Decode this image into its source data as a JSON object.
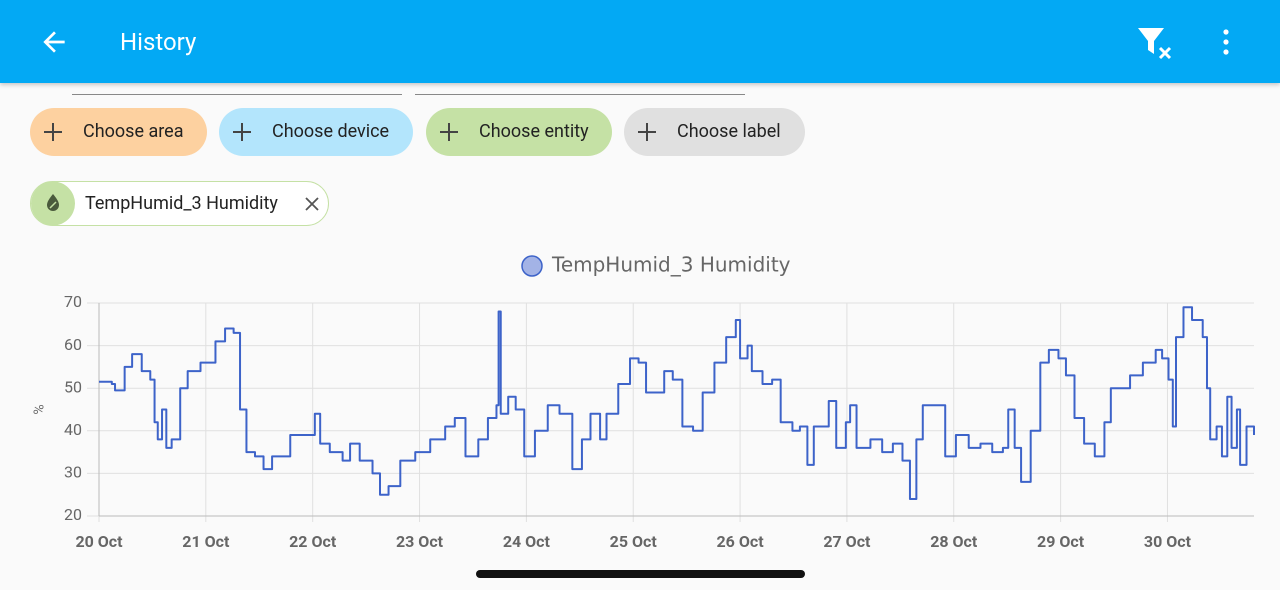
{
  "header": {
    "title": "History"
  },
  "filters": {
    "chips": [
      "Choose area",
      "Choose device",
      "Choose entity",
      "Choose label"
    ]
  },
  "selected": {
    "entity": "TempHumid_3 Humidity"
  },
  "chart_data": {
    "type": "line",
    "ylabel": "%",
    "grid": true,
    "xlim": [
      0,
      10.81
    ],
    "xticks": [
      {
        "value": 0,
        "label": "20 Oct"
      },
      {
        "value": 1,
        "label": "21 Oct"
      },
      {
        "value": 2,
        "label": "22 Oct"
      },
      {
        "value": 3,
        "label": "23 Oct"
      },
      {
        "value": 4,
        "label": "24 Oct"
      },
      {
        "value": 5,
        "label": "25 Oct"
      },
      {
        "value": 6,
        "label": "26 Oct"
      },
      {
        "value": 7,
        "label": "27 Oct"
      },
      {
        "value": 8,
        "label": "28 Oct"
      },
      {
        "value": 9,
        "label": "29 Oct"
      },
      {
        "value": 10,
        "label": "30 Oct"
      }
    ],
    "ylim": [
      20,
      70
    ],
    "yticks": [
      20,
      30,
      40,
      50,
      60,
      70
    ],
    "x": [
      0,
      0.12,
      0.15,
      0.21,
      0.24,
      0.31,
      0.4,
      0.48,
      0.52,
      0.55,
      0.59,
      0.63,
      0.68,
      0.76,
      0.83,
      0.95,
      1.09,
      1.18,
      1.26,
      1.32,
      1.38,
      1.46,
      1.54,
      1.62,
      1.71,
      1.79,
      1.9,
      2.02,
      2.07,
      2.16,
      2.28,
      2.35,
      2.44,
      2.56,
      2.63,
      2.71,
      2.82,
      2.96,
      3.1,
      3.24,
      3.33,
      3.43,
      3.55,
      3.64,
      3.72,
      3.74,
      3.76,
      3.83,
      3.9,
      3.98,
      4.08,
      4.2,
      4.31,
      4.43,
      4.52,
      4.6,
      4.69,
      4.75,
      4.86,
      4.97,
      5.05,
      5.12,
      5.22,
      5.29,
      5.37,
      5.46,
      5.56,
      5.65,
      5.76,
      5.87,
      5.96,
      6.0,
      6.07,
      6.11,
      6.21,
      6.3,
      6.38,
      6.49,
      6.56,
      6.63,
      6.69,
      6.83,
      6.9,
      6.99,
      7.03,
      7.09,
      7.22,
      7.33,
      7.43,
      7.52,
      7.59,
      7.65,
      7.71,
      7.83,
      7.92,
      8.02,
      8.14,
      8.25,
      8.36,
      8.46,
      8.51,
      8.57,
      8.63,
      8.72,
      8.81,
      8.89,
      8.98,
      9.05,
      9.13,
      9.22,
      9.32,
      9.41,
      9.47,
      9.56,
      9.65,
      9.77,
      9.89,
      9.95,
      10.01,
      10.05,
      10.08,
      10.15,
      10.23,
      10.33,
      10.37,
      10.4,
      10.46,
      10.51,
      10.56,
      10.6,
      10.65,
      10.68,
      10.74,
      10.81
    ],
    "series": [
      {
        "name": "TempHumid_3 Humidity",
        "color": "#3d63c9",
        "marker_color": "#a3b3e6",
        "values": [
          51.5,
          51,
          49.5,
          49.5,
          55,
          58,
          54,
          52,
          42,
          38,
          45,
          36,
          38,
          50,
          54,
          56,
          61,
          64,
          63,
          45,
          35,
          34,
          31,
          34,
          34,
          39,
          39,
          44,
          37,
          35,
          33,
          37,
          33,
          30,
          25,
          27,
          33,
          35,
          38,
          41,
          43,
          34,
          38,
          43,
          46,
          68,
          44,
          48,
          45,
          34,
          40,
          46,
          44,
          31,
          38,
          44,
          38,
          44,
          51,
          57,
          56,
          49,
          49,
          54,
          52,
          41,
          40,
          49,
          56,
          62,
          66,
          57,
          60,
          54,
          51,
          52,
          42,
          40,
          41,
          32,
          41,
          47,
          36,
          42,
          46,
          36,
          38,
          35,
          37,
          33,
          24,
          38,
          46,
          46,
          34,
          39,
          36,
          37,
          35,
          36,
          45,
          36,
          28,
          40,
          56,
          59,
          57,
          53,
          43,
          37,
          34,
          42,
          50,
          50,
          53,
          56,
          59,
          57,
          52,
          41,
          62,
          69,
          66,
          62,
          50,
          38,
          41,
          34,
          48,
          36,
          45,
          32,
          41,
          39
        ]
      }
    ]
  }
}
